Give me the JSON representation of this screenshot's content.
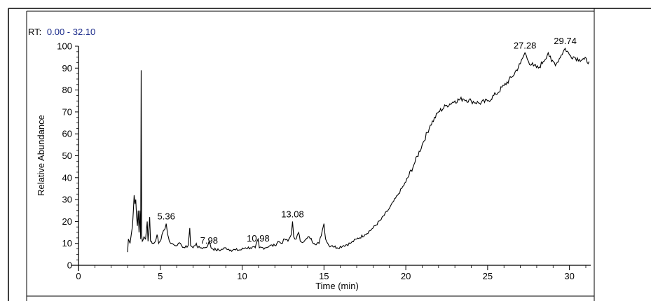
{
  "header": {
    "rt_prefix": "RT:",
    "rt_range": "0.00 - 32.10",
    "rt_color": "#1a2a8a"
  },
  "chart_data": {
    "type": "line",
    "title": "",
    "xlabel": "Time (min)",
    "ylabel": "Relative Abundance",
    "xlim": [
      0,
      31.3
    ],
    "ylim": [
      0,
      100
    ],
    "x_ticks": [
      0,
      5,
      10,
      15,
      20,
      25,
      30
    ],
    "y_ticks": [
      0,
      10,
      20,
      30,
      40,
      50,
      60,
      70,
      80,
      90,
      100
    ],
    "grid": false,
    "line_color": "#000000",
    "peak_labels": [
      {
        "x": 5.36,
        "y": 19,
        "label": "5.36"
      },
      {
        "x": 7.98,
        "y": 8,
        "label": "7.98"
      },
      {
        "x": 10.98,
        "y": 9,
        "label": "10.98"
      },
      {
        "x": 13.08,
        "y": 20,
        "label": "13.08"
      },
      {
        "x": 27.28,
        "y": 97,
        "label": "27.28"
      },
      {
        "x": 29.74,
        "y": 99,
        "label": "29.74"
      }
    ],
    "series": [
      {
        "values": [
          [
            3.0,
            6
          ],
          [
            3.05,
            12
          ],
          [
            3.15,
            10
          ],
          [
            3.3,
            18
          ],
          [
            3.4,
            32
          ],
          [
            3.45,
            28
          ],
          [
            3.5,
            30
          ],
          [
            3.55,
            22
          ],
          [
            3.6,
            18
          ],
          [
            3.65,
            25
          ],
          [
            3.7,
            15
          ],
          [
            3.75,
            25
          ],
          [
            3.8,
            12
          ],
          [
            3.83,
            89
          ],
          [
            3.86,
            14
          ],
          [
            3.9,
            11
          ],
          [
            4.0,
            13
          ],
          [
            4.1,
            12
          ],
          [
            4.2,
            20
          ],
          [
            4.25,
            11
          ],
          [
            4.35,
            22
          ],
          [
            4.4,
            11
          ],
          [
            4.5,
            10
          ],
          [
            4.6,
            10
          ],
          [
            4.7,
            11
          ],
          [
            4.8,
            14
          ],
          [
            4.9,
            10
          ],
          [
            5.0,
            11
          ],
          [
            5.1,
            14
          ],
          [
            5.2,
            16
          ],
          [
            5.3,
            17
          ],
          [
            5.36,
            19
          ],
          [
            5.45,
            14
          ],
          [
            5.55,
            11
          ],
          [
            5.7,
            10
          ],
          [
            5.9,
            9
          ],
          [
            6.1,
            10
          ],
          [
            6.3,
            9
          ],
          [
            6.5,
            8
          ],
          [
            6.7,
            9
          ],
          [
            6.8,
            17
          ],
          [
            6.85,
            9
          ],
          [
            7.0,
            8
          ],
          [
            7.2,
            10
          ],
          [
            7.3,
            8
          ],
          [
            7.5,
            8
          ],
          [
            7.7,
            8
          ],
          [
            7.9,
            9
          ],
          [
            7.98,
            11
          ],
          [
            8.1,
            8
          ],
          [
            8.4,
            7
          ],
          [
            8.7,
            7
          ],
          [
            9.0,
            8
          ],
          [
            9.3,
            7
          ],
          [
            9.6,
            7
          ],
          [
            9.9,
            7
          ],
          [
            10.2,
            8
          ],
          [
            10.5,
            8
          ],
          [
            10.8,
            8
          ],
          [
            10.98,
            12
          ],
          [
            11.05,
            8
          ],
          [
            11.4,
            8
          ],
          [
            11.7,
            9
          ],
          [
            12.0,
            9
          ],
          [
            12.2,
            11
          ],
          [
            12.4,
            10
          ],
          [
            12.6,
            12
          ],
          [
            12.8,
            11
          ],
          [
            13.0,
            14
          ],
          [
            13.08,
            20
          ],
          [
            13.15,
            13
          ],
          [
            13.3,
            12
          ],
          [
            13.45,
            15
          ],
          [
            13.55,
            11
          ],
          [
            13.8,
            11
          ],
          [
            14.1,
            13
          ],
          [
            14.4,
            10
          ],
          [
            14.7,
            10
          ],
          [
            14.9,
            16
          ],
          [
            15.0,
            19
          ],
          [
            15.1,
            12
          ],
          [
            15.3,
            9
          ],
          [
            15.5,
            9
          ],
          [
            15.8,
            8
          ],
          [
            16.2,
            9
          ],
          [
            16.6,
            10
          ],
          [
            17.0,
            12
          ],
          [
            17.5,
            14
          ],
          [
            18.0,
            17
          ],
          [
            18.5,
            21
          ],
          [
            19.0,
            26
          ],
          [
            19.5,
            32
          ],
          [
            20.0,
            38
          ],
          [
            20.5,
            46
          ],
          [
            21.0,
            55
          ],
          [
            21.5,
            64
          ],
          [
            22.0,
            70
          ],
          [
            22.5,
            73
          ],
          [
            23.0,
            75
          ],
          [
            23.5,
            76
          ],
          [
            24.0,
            75
          ],
          [
            24.5,
            74
          ],
          [
            25.0,
            75
          ],
          [
            25.5,
            78
          ],
          [
            26.0,
            82
          ],
          [
            26.5,
            86
          ],
          [
            27.0,
            92
          ],
          [
            27.28,
            97
          ],
          [
            27.5,
            93
          ],
          [
            27.8,
            91
          ],
          [
            28.1,
            90
          ],
          [
            28.4,
            93
          ],
          [
            28.7,
            97
          ],
          [
            28.9,
            93
          ],
          [
            29.2,
            92
          ],
          [
            29.5,
            96
          ],
          [
            29.74,
            99
          ],
          [
            30.0,
            96
          ],
          [
            30.3,
            95
          ],
          [
            30.6,
            94
          ],
          [
            30.9,
            94
          ],
          [
            31.2,
            93
          ]
        ]
      }
    ]
  }
}
